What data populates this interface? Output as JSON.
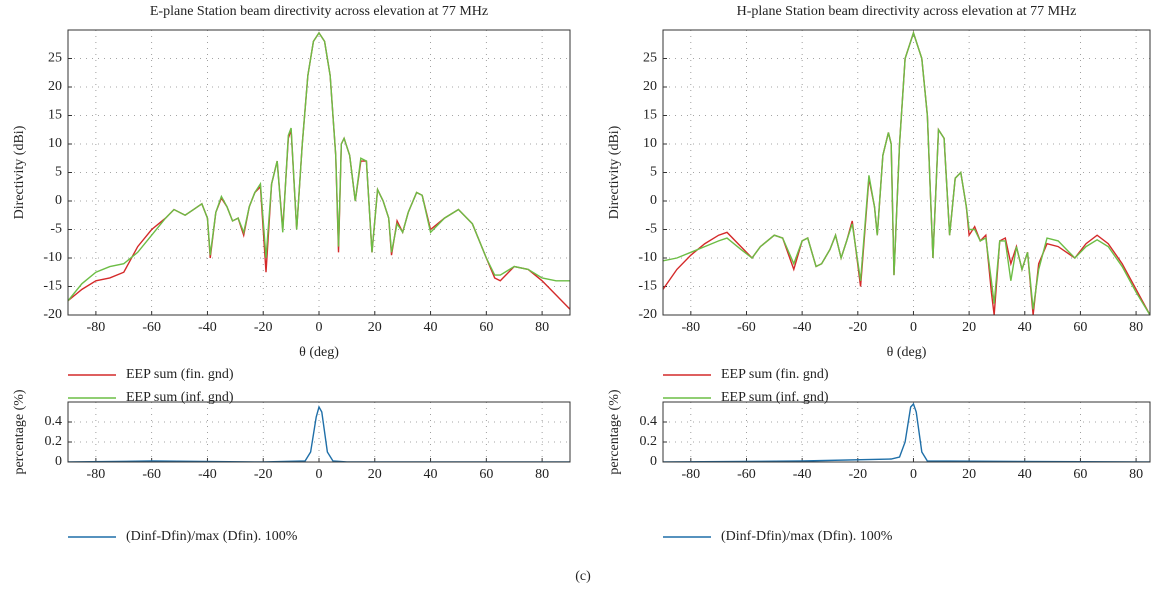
{
  "chart_data": [
    {
      "type": "line",
      "title": "E-plane Station beam directivity across elevation at 77 MHz",
      "xlabel": "θ (deg)",
      "ylabel": "Directivity (dBi)",
      "x": [
        -90,
        -85,
        -80,
        -75,
        -70,
        -65,
        -60,
        -55,
        -52,
        -48,
        -45,
        -42,
        -40,
        -39,
        -37,
        -35,
        -33,
        -31,
        -29,
        -27,
        -25,
        -23,
        -21,
        -19,
        -17,
        -15,
        -13,
        -11,
        -10,
        -8,
        -6,
        -4,
        -2,
        0,
        2,
        4,
        6,
        7,
        8,
        9,
        11,
        13,
        15,
        17,
        19,
        21,
        23,
        25,
        26,
        28,
        30,
        32,
        35,
        37,
        40,
        45,
        50,
        55,
        60,
        63,
        65,
        70,
        75,
        80,
        85,
        90
      ],
      "series": [
        {
          "name": "EEP sum (fin. gnd)",
          "color": "#d42a2a",
          "values": [
            -17.5,
            -15.5,
            -14,
            -13.5,
            -12.5,
            -8,
            -5,
            -3,
            -1.5,
            -2.5,
            -1.5,
            -0.5,
            -3,
            -10,
            -2,
            0.5,
            -1,
            -3.5,
            -3,
            -6,
            -1,
            1.5,
            2.5,
            -12.5,
            3,
            7,
            -5,
            11,
            12.5,
            -5,
            10,
            22,
            28,
            29.5,
            28,
            22,
            8,
            -9,
            10,
            11,
            8,
            0,
            7,
            7,
            -9,
            2,
            0,
            -3,
            -9.5,
            -3.5,
            -5.5,
            -2,
            1.5,
            1,
            -5,
            -3,
            -1.5,
            -4,
            -10,
            -13.5,
            -14,
            -11.5,
            -12,
            -14,
            -16.5,
            -19
          ]
        },
        {
          "name": "EEP sum (inf. gnd)",
          "color": "#6cbd45",
          "values": [
            -17.5,
            -14.5,
            -12.5,
            -11.5,
            -11,
            -9,
            -6,
            -3,
            -1.5,
            -2.5,
            -1.5,
            -0.5,
            -3,
            -9.5,
            -2,
            0.8,
            -1,
            -3.5,
            -3,
            -5.5,
            -1,
            1.5,
            3,
            -10,
            3,
            7,
            -5.5,
            11.5,
            12.8,
            -5,
            10,
            22,
            28,
            29.5,
            28,
            22,
            8,
            -8,
            10,
            11,
            8,
            0,
            7.5,
            7,
            -9,
            2,
            0,
            -3,
            -9,
            -4,
            -5.5,
            -2,
            1.5,
            1,
            -5.5,
            -3,
            -1.5,
            -4,
            -10,
            -13,
            -13,
            -11.5,
            -12,
            -13.5,
            -14,
            -14
          ]
        }
      ],
      "xlim": [
        -90,
        90
      ],
      "ylim": [
        -20,
        30
      ],
      "xticks": [
        -80,
        -60,
        -40,
        -20,
        0,
        20,
        40,
        60,
        80
      ],
      "yticks": [
        -20,
        -15,
        -10,
        -5,
        0,
        5,
        10,
        15,
        20,
        25
      ],
      "grid": true,
      "legend": "below"
    },
    {
      "type": "line",
      "title": "H-plane Station beam directivity across elevation at 77 MHz",
      "xlabel": "θ (deg)",
      "ylabel": "Directivity (dBi)",
      "x": [
        -90,
        -85,
        -80,
        -75,
        -70,
        -67,
        -62,
        -58,
        -55,
        -50,
        -47,
        -43,
        -40,
        -38,
        -35,
        -33,
        -30,
        -28,
        -26,
        -24,
        -22,
        -19,
        -16,
        -14,
        -13,
        -11,
        -9,
        -8,
        -7,
        -5,
        -3,
        0,
        3,
        5,
        7,
        9,
        11,
        13,
        15,
        17,
        19,
        20,
        22,
        24,
        26,
        28,
        29,
        31,
        33,
        35,
        37,
        39,
        41,
        43,
        45,
        48,
        52,
        55,
        58,
        62,
        66,
        70,
        75,
        80,
        85
      ],
      "series": [
        {
          "name": "EEP sum (fin. gnd)",
          "color": "#d42a2a",
          "values": [
            -15.5,
            -12,
            -9.5,
            -7.5,
            -6,
            -5.5,
            -8,
            -10,
            -8,
            -6,
            -6.5,
            -12,
            -7,
            -6.5,
            -11.5,
            -11,
            -8.5,
            -6,
            -10,
            -7,
            -3.5,
            -15,
            4,
            -1,
            -6,
            8,
            12,
            10,
            -13,
            10,
            25,
            29.5,
            25,
            15,
            -10,
            12.5,
            11,
            -6,
            4,
            5,
            -1,
            -6,
            -4.5,
            -7,
            -6,
            -16,
            -20,
            -7,
            -6.5,
            -11,
            -8,
            -12,
            -9,
            -20,
            -11,
            -7.5,
            -8,
            -9,
            -10,
            -7.5,
            -6,
            -7.5,
            -11,
            -15.5,
            -20
          ]
        },
        {
          "name": "EEP sum (inf. gnd)",
          "color": "#6cbd45",
          "values": [
            -10.5,
            -10,
            -9,
            -8,
            -7,
            -6.5,
            -8.5,
            -10,
            -8,
            -6,
            -6.5,
            -11,
            -7,
            -6.5,
            -11.5,
            -11,
            -8.5,
            -6,
            -10,
            -7,
            -4,
            -14,
            4.5,
            -1,
            -6,
            8,
            12,
            10,
            -13,
            10,
            25,
            29.5,
            25,
            15,
            -10,
            12.5,
            11,
            -6,
            4,
            5,
            -1,
            -5,
            -5,
            -7,
            -6.5,
            -14,
            -18,
            -7,
            -7,
            -14,
            -8,
            -12,
            -9,
            -19,
            -12,
            -6.5,
            -7,
            -8.5,
            -10,
            -8,
            -6.8,
            -8,
            -11.5,
            -16,
            -20
          ]
        }
      ],
      "xlim": [
        -90,
        85
      ],
      "ylim": [
        -20,
        30
      ],
      "xticks": [
        -80,
        -60,
        -40,
        -20,
        0,
        20,
        40,
        60,
        80
      ],
      "yticks": [
        -20,
        -15,
        -10,
        -5,
        0,
        5,
        10,
        15,
        20,
        25
      ],
      "grid": true,
      "legend": "below"
    },
    {
      "type": "line",
      "ylabel": "percentage (%)",
      "x": [
        -90,
        -60,
        -20,
        -5,
        -3,
        -1,
        0,
        1,
        3,
        5,
        10,
        90
      ],
      "series": [
        {
          "name": "(Dinf-Dfin)/max (Dfin). 100%",
          "color": "#1f6fa8",
          "values": [
            0,
            0.01,
            0,
            0.01,
            0.1,
            0.45,
            0.55,
            0.5,
            0.1,
            0.01,
            0,
            0
          ]
        }
      ],
      "xlim": [
        -90,
        90
      ],
      "ylim": [
        0,
        0.6
      ],
      "xticks": [
        -80,
        -60,
        -40,
        -20,
        0,
        20,
        40,
        60,
        80
      ],
      "yticks": [
        0,
        0.2,
        0.4
      ],
      "grid": true,
      "legend": "below"
    },
    {
      "type": "line",
      "ylabel": "percentage (%)",
      "x": [
        -90,
        -40,
        -8,
        -5,
        -3,
        -1,
        0,
        1,
        3,
        5,
        85
      ],
      "series": [
        {
          "name": "(Dinf-Dfin)/max (Dfin). 100%",
          "color": "#1f6fa8",
          "values": [
            0,
            0.01,
            0.03,
            0.05,
            0.2,
            0.55,
            0.58,
            0.5,
            0.1,
            0.01,
            0
          ]
        }
      ],
      "xlim": [
        -90,
        85
      ],
      "ylim": [
        0,
        0.6
      ],
      "xticks": [
        -80,
        -60,
        -40,
        -20,
        0,
        20,
        40,
        60,
        80
      ],
      "yticks": [
        0,
        0.2,
        0.4
      ],
      "grid": true,
      "legend": "below"
    }
  ],
  "caption": "(c)"
}
